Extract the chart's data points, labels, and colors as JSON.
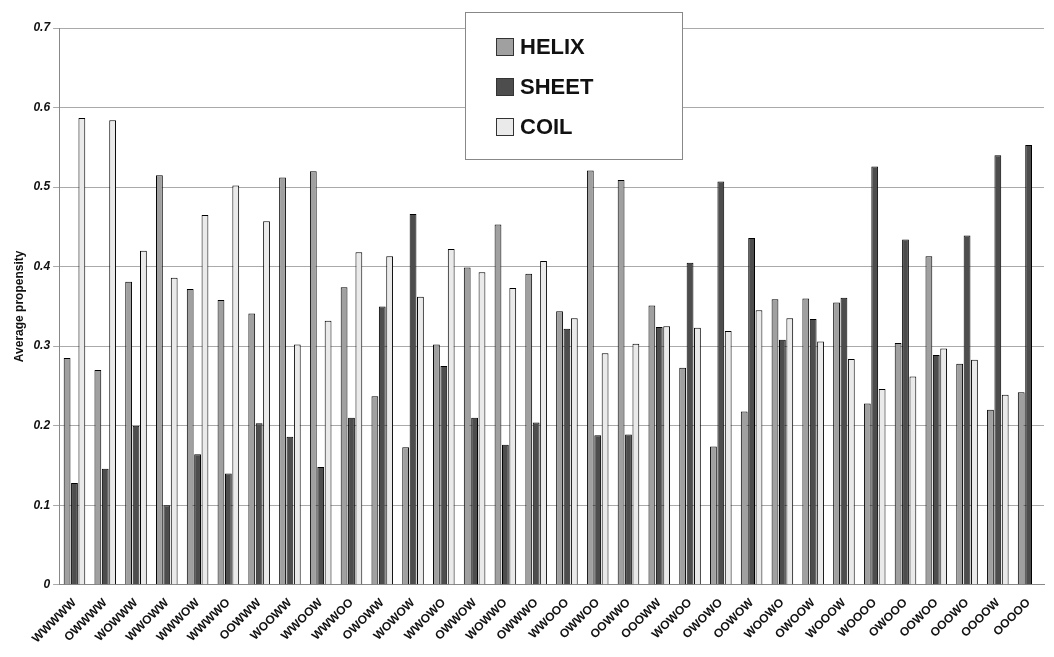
{
  "chart_data": {
    "type": "bar",
    "ylabel": "Average propensity",
    "categories": [
      "WWWWW",
      "OWWWW",
      "WOWWW",
      "WWOWW",
      "WWWOW",
      "WWWWO",
      "OOWWW",
      "WOOWW",
      "WWOOW",
      "WWWOO",
      "OWOWW",
      "WOWOW",
      "WWOWO",
      "OWWOW",
      "WOWWO",
      "OWWWO",
      "WWOOO",
      "OWWOO",
      "OOWWO",
      "OOOWW",
      "WOWOO",
      "OWOWO",
      "OOWOW",
      "WOOWO",
      "OWOOW",
      "WOOOW",
      "WOOOO",
      "OWOOO",
      "OOWOO",
      "OOOWO",
      "OOOOW",
      "OOOOO"
    ],
    "series": [
      {
        "name": "HELIX",
        "color": "#a0a0a0",
        "values": [
          0.285,
          0.27,
          0.381,
          0.515,
          0.372,
          0.358,
          0.341,
          0.512,
          0.52,
          0.374,
          0.237,
          0.173,
          0.302,
          0.399,
          0.453,
          0.391,
          0.344,
          0.521,
          0.509,
          0.351,
          0.273,
          0.174,
          0.218,
          0.359,
          0.36,
          0.355,
          0.228,
          0.304,
          0.413,
          0.278,
          0.22,
          0.242
        ]
      },
      {
        "name": "SHEET",
        "color": "#4d4d4d",
        "values": [
          0.128,
          0.146,
          0.2,
          0.1,
          0.164,
          0.14,
          0.203,
          0.186,
          0.148,
          0.21,
          0.35,
          0.466,
          0.275,
          0.21,
          0.176,
          0.204,
          0.322,
          0.188,
          0.189,
          0.324,
          0.405,
          0.507,
          0.436,
          0.308,
          0.334,
          0.361,
          0.526,
          0.434,
          0.289,
          0.439,
          0.54,
          0.553
        ]
      },
      {
        "name": "COIL",
        "color": "#eaeaea",
        "values": [
          0.587,
          0.584,
          0.42,
          0.386,
          0.465,
          0.502,
          0.457,
          0.302,
          0.332,
          0.418,
          0.413,
          0.362,
          0.422,
          0.393,
          0.373,
          0.407,
          0.335,
          0.291,
          0.303,
          0.325,
          0.323,
          0.319,
          0.345,
          0.335,
          0.306,
          0.284,
          0.246,
          0.262,
          0.297,
          0.283,
          0.239,
          null
        ]
      }
    ],
    "ylim": [
      0,
      0.7
    ],
    "yticks": [
      0,
      0.1,
      0.2,
      0.3,
      0.4,
      0.5,
      0.6,
      0.7
    ],
    "grid": "y",
    "legend": "top"
  }
}
